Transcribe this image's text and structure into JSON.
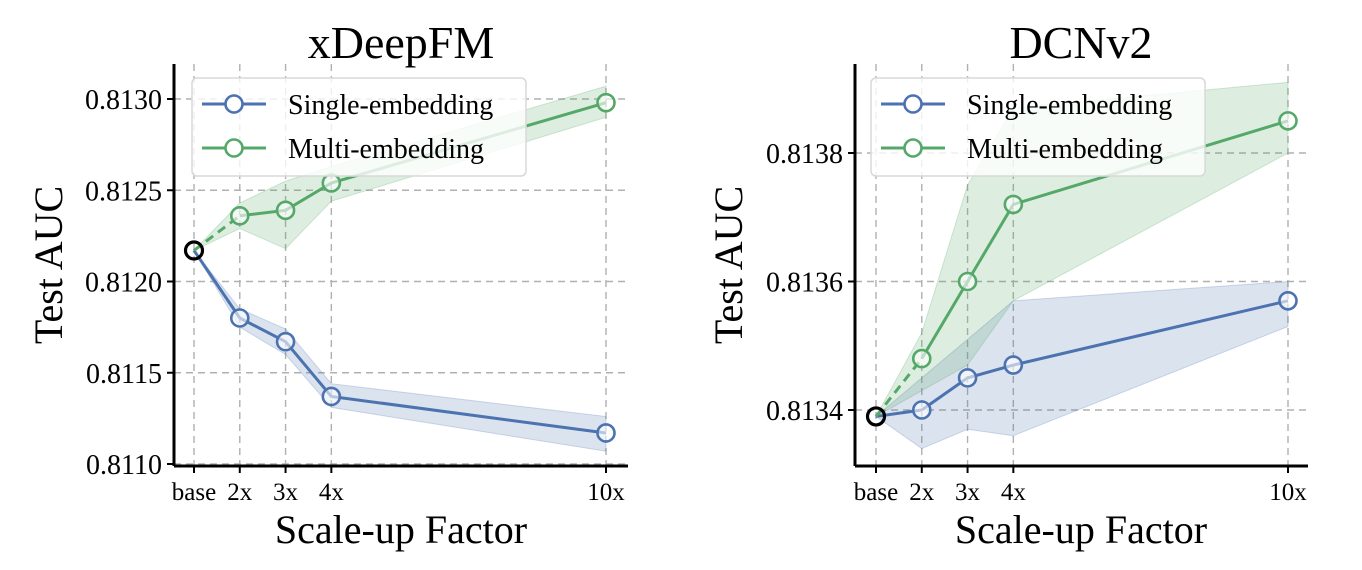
{
  "colors": {
    "single": "#4c72b0",
    "multi": "#55a868",
    "single_band": "#4c72b0",
    "multi_band": "#55a868",
    "base_marker": "#000000"
  },
  "chart_data": [
    {
      "type": "line",
      "title": "xDeepFM",
      "xlabel": "Scale-up Factor",
      "ylabel": "Test AUC",
      "x_ticks": [
        "base",
        "2x",
        "3x",
        "4x",
        "10x"
      ],
      "x": [
        1,
        2,
        3,
        4,
        10
      ],
      "ylim": [
        0.811,
        0.8132
      ],
      "y_ticks": [
        "0.8110",
        "0.8115",
        "0.8120",
        "0.8125",
        "0.8130"
      ],
      "grid": true,
      "legend_position": "top-left",
      "series": [
        {
          "name": "Single-embedding",
          "color_key": "single",
          "values": [
            0.81217,
            0.8118,
            0.81167,
            0.81137,
            0.81117
          ],
          "lower": [
            0.81217,
            0.81175,
            0.8116,
            0.81131,
            0.81107
          ],
          "upper": [
            0.81217,
            0.81185,
            0.81174,
            0.81144,
            0.81126
          ]
        },
        {
          "name": "Multi-embedding",
          "color_key": "multi",
          "values": [
            0.81217,
            0.81236,
            0.81239,
            0.81254,
            0.81298
          ],
          "lower": [
            0.81217,
            0.81229,
            0.81218,
            0.81244,
            0.8129
          ],
          "upper": [
            0.81217,
            0.81243,
            0.81255,
            0.81263,
            0.81307
          ]
        }
      ]
    },
    {
      "type": "line",
      "title": "DCNv2",
      "xlabel": "Scale-up Factor",
      "ylabel": "Test AUC",
      "x_ticks": [
        "base",
        "2x",
        "3x",
        "4x",
        "10x"
      ],
      "x": [
        1,
        2,
        3,
        4,
        10
      ],
      "ylim": [
        0.81331,
        0.81394
      ],
      "y_ticks": [
        "0.8134",
        "0.8136",
        "0.8138"
      ],
      "grid": true,
      "legend_position": "top-left",
      "series": [
        {
          "name": "Single-embedding",
          "color_key": "single",
          "values": [
            0.81339,
            0.8134,
            0.81345,
            0.81347,
            0.81357
          ],
          "lower": [
            0.81339,
            0.81334,
            0.81337,
            0.81336,
            0.81353
          ],
          "upper": [
            0.81339,
            0.81345,
            0.81351,
            0.81357,
            0.8136
          ]
        },
        {
          "name": "Multi-embedding",
          "color_key": "multi",
          "values": [
            0.81339,
            0.81348,
            0.8136,
            0.81372,
            0.81385
          ],
          "lower": [
            0.81339,
            0.81343,
            0.81347,
            0.81357,
            0.8138
          ],
          "upper": [
            0.81339,
            0.81352,
            0.81375,
            0.81387,
            0.81391
          ]
        }
      ]
    }
  ]
}
